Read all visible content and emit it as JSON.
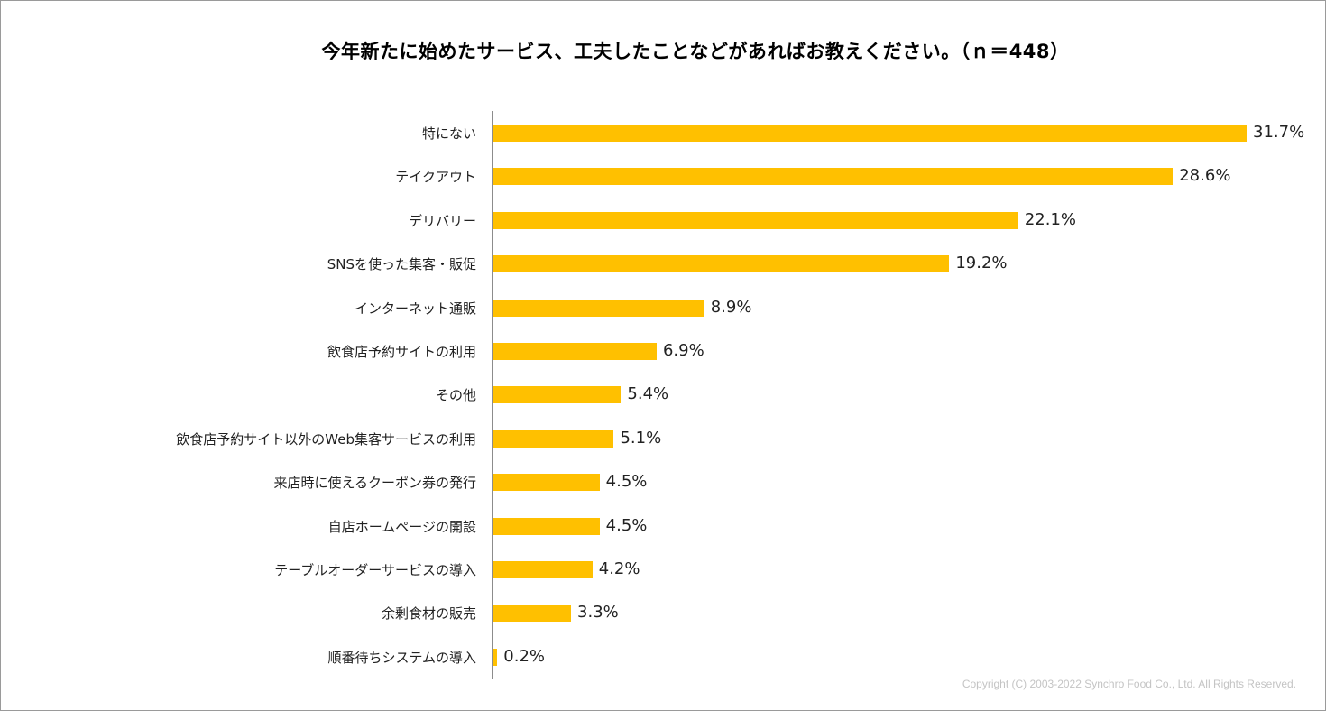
{
  "chart_data": {
    "type": "bar",
    "orientation": "horizontal",
    "title": "今年新たに始めたサービス、工夫したことなどがあればお教えください。（ｎ＝448）",
    "categories": [
      "特にない",
      "テイクアウト",
      "デリバリー",
      "SNSを使った集客・販促",
      "インターネット通販",
      "飲食店予約サイトの利用",
      "その他",
      "飲食店予約サイト以外のWeb集客サービスの利用",
      "来店時に使えるクーポン券の発行",
      "自店ホームページの開設",
      "テーブルオーダーサービスの導入",
      "余剰食材の販売",
      "順番待ちシステムの導入"
    ],
    "values": [
      31.7,
      28.6,
      22.1,
      19.2,
      8.9,
      6.9,
      5.4,
      5.1,
      4.5,
      4.5,
      4.2,
      3.3,
      0.2
    ],
    "value_labels": [
      "31.7%",
      "28.6%",
      "22.1%",
      "19.2%",
      "8.9%",
      "6.9%",
      "5.4%",
      "5.1%",
      "4.5%",
      "4.5%",
      "4.2%",
      "3.3%",
      "0.2%"
    ],
    "unit": "%",
    "xlim": [
      0,
      31.7
    ],
    "grid": false,
    "legend": "none",
    "bar_color": "#ffc000"
  },
  "footer": {
    "copyright": "Copyright (C) 2003-2022   Synchro Food Co., Ltd. All Rights Reserved."
  }
}
